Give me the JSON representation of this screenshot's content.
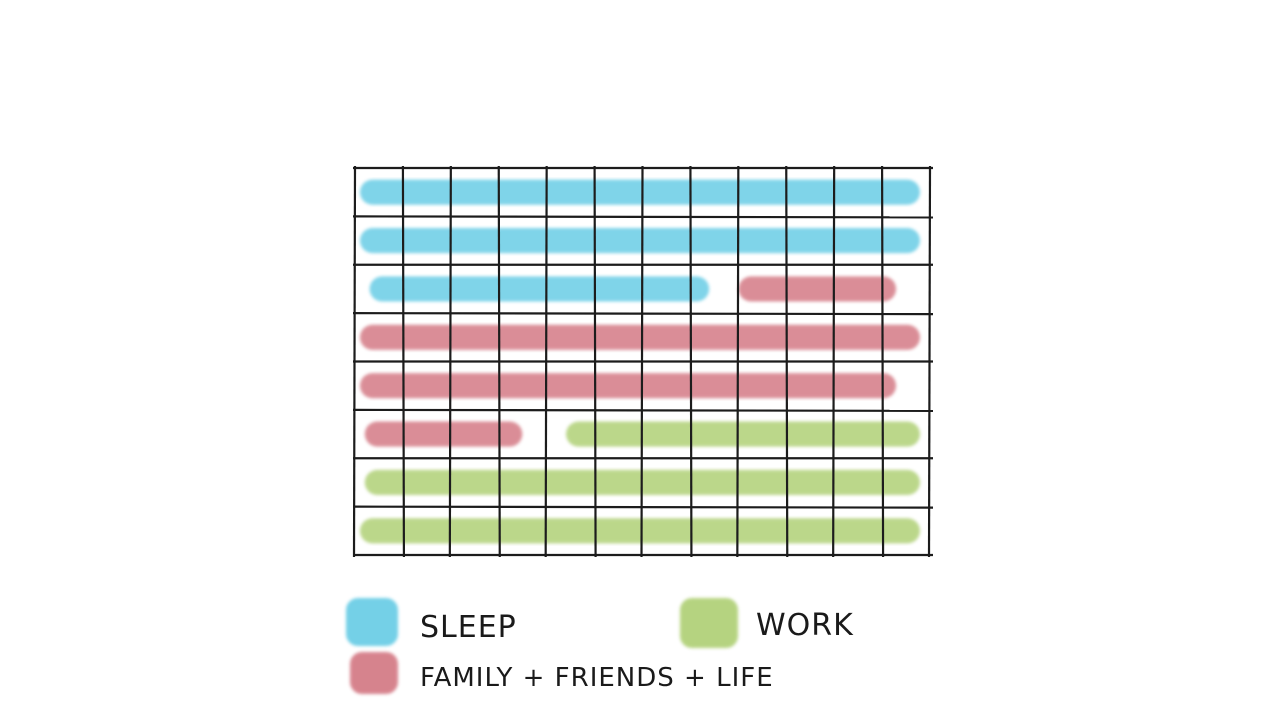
{
  "grid": {
    "columns": 12,
    "rows": 8
  },
  "categories": {
    "sleep": {
      "label": "SLEEP",
      "color": "#5cc8e3"
    },
    "family": {
      "label": "FAMILY + FRIENDS + LIFE",
      "color": "#d06e7a"
    },
    "work": {
      "label": "WORK",
      "color": "#a9cc6a"
    }
  },
  "rows": [
    [
      {
        "category": "sleep",
        "start": 0,
        "end": 12
      }
    ],
    [
      {
        "category": "sleep",
        "start": 0,
        "end": 12
      }
    ],
    [
      {
        "category": "sleep",
        "start": 0.2,
        "end": 7.6
      },
      {
        "category": "family",
        "start": 7.9,
        "end": 11.5
      }
    ],
    [
      {
        "category": "family",
        "start": 0,
        "end": 12
      }
    ],
    [
      {
        "category": "family",
        "start": 0,
        "end": 11.5
      }
    ],
    [
      {
        "category": "family",
        "start": 0.1,
        "end": 3.7
      },
      {
        "category": "work",
        "start": 4.3,
        "end": 12
      }
    ],
    [
      {
        "category": "work",
        "start": 0.1,
        "end": 12
      }
    ],
    [
      {
        "category": "work",
        "start": 0,
        "end": 12
      }
    ]
  ],
  "legend": [
    "sleep",
    "work",
    "family"
  ]
}
